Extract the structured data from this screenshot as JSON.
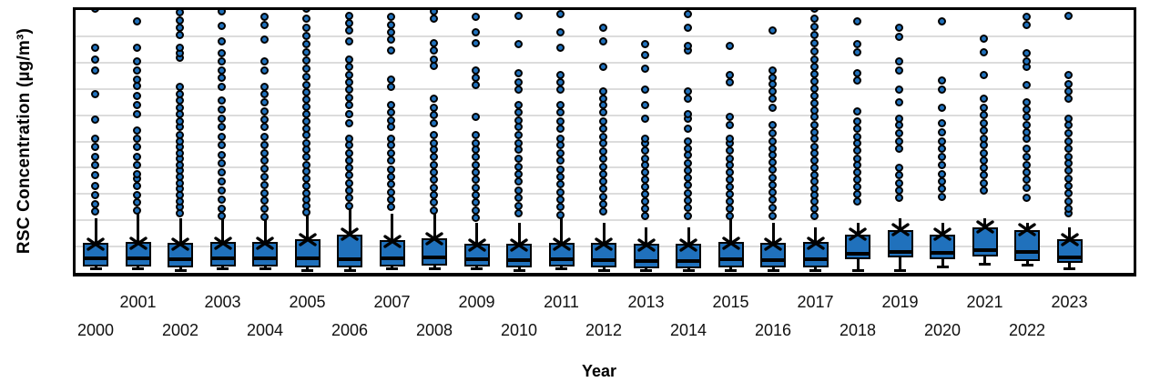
{
  "figure": {
    "y_axis_title": "RSC Concentration (µg/m³)",
    "x_axis_title": "Year",
    "colors": {
      "box_fill": "#2071BC",
      "stroke": "#000000",
      "gridline": "#DCDCDC",
      "background": "#FFFFFF",
      "tick_label": "#111111"
    }
  },
  "chart_data": {
    "type": "boxplot",
    "title": "",
    "xlabel": "Year",
    "ylabel": "RSC Concentration (µg/m³)",
    "grid": true,
    "legend": "none",
    "y_tick_labels_visible": false,
    "y_divisions": 10,
    "ylim": [
      0,
      10
    ],
    "units_note": "y values expressed in gridline divisions (0 = x-axis, 10 = top of plot); chart shows no numeric y-axis labels",
    "categories": [
      "2000",
      "2001",
      "2002",
      "2003",
      "2004",
      "2005",
      "2006",
      "2007",
      "2008",
      "2009",
      "2010",
      "2011",
      "2012",
      "2013",
      "2014",
      "2015",
      "2016",
      "2017",
      "2018",
      "2019",
      "2020",
      "2021",
      "2022",
      "2023"
    ],
    "series": [
      {
        "year": "2000",
        "q1": 0.24,
        "median": 0.55,
        "q3": 1.14,
        "mean": 1.1,
        "whisker_low": 0.14,
        "whisker_high": 2.07,
        "outliers": [
          2.31,
          2.59,
          2.93,
          3.28,
          3.69,
          4.07,
          4.41,
          4.76,
          5.1,
          5.83,
          6.79,
          7.69,
          8.1,
          8.55,
          10.05
        ]
      },
      {
        "year": "2001",
        "q1": 0.24,
        "median": 0.55,
        "q3": 1.17,
        "mean": 1.12,
        "whisker_low": 0.14,
        "whisker_high": 2.24,
        "outliers": [
          2.34,
          2.66,
          2.93,
          3.28,
          3.55,
          3.72,
          4.07,
          4.41,
          4.76,
          5.1,
          5.41,
          6.03,
          6.38,
          6.72,
          7.1,
          7.34,
          7.69,
          8.03,
          8.55,
          9.55
        ]
      },
      {
        "year": "2002",
        "q1": 0.21,
        "median": 0.52,
        "q3": 1.14,
        "mean": 1.1,
        "whisker_low": 0.1,
        "whisker_high": 2.07,
        "outliers": [
          2.24,
          2.48,
          2.69,
          2.93,
          3.17,
          3.38,
          3.62,
          3.86,
          4.07,
          4.31,
          4.55,
          4.76,
          5.0,
          5.24,
          5.52,
          5.76,
          6.03,
          6.28,
          6.55,
          6.79,
          7.07,
          8.17,
          8.34,
          8.55,
          9.03,
          9.31,
          9.59,
          9.9
        ]
      },
      {
        "year": "2003",
        "q1": 0.24,
        "median": 0.55,
        "q3": 1.17,
        "mean": 1.12,
        "whisker_low": 0.14,
        "whisker_high": 2.24,
        "outliers": [
          2.14,
          2.41,
          2.76,
          3.1,
          3.45,
          3.79,
          4.14,
          4.48,
          4.83,
          5.17,
          5.52,
          5.86,
          6.21,
          6.55,
          7.07,
          7.41,
          7.69,
          8.03,
          8.34,
          8.79,
          9.38,
          9.93
        ]
      },
      {
        "year": "2004",
        "q1": 0.24,
        "median": 0.55,
        "q3": 1.17,
        "mean": 1.12,
        "whisker_low": 0.14,
        "whisker_high": 2.07,
        "outliers": [
          2.1,
          2.41,
          2.72,
          3.0,
          3.31,
          3.62,
          3.93,
          4.24,
          4.55,
          4.86,
          5.17,
          5.52,
          5.83,
          6.14,
          6.48,
          6.79,
          7.07,
          7.69,
          8.03,
          8.86,
          9.41,
          9.72
        ]
      },
      {
        "year": "2005",
        "q1": 0.21,
        "median": 0.55,
        "q3": 1.28,
        "mean": 1.28,
        "whisker_low": 0.1,
        "whisker_high": 2.24,
        "outliers": [
          2.28,
          2.52,
          2.76,
          3.0,
          3.28,
          3.55,
          3.83,
          4.1,
          4.38,
          4.66,
          4.93,
          5.21,
          5.48,
          5.76,
          6.03,
          6.31,
          6.59,
          6.86,
          7.14,
          7.45,
          7.76,
          8.07,
          8.38,
          8.69,
          9.0,
          9.31,
          9.66,
          10.05
        ]
      },
      {
        "year": "2006",
        "q1": 0.21,
        "median": 0.52,
        "q3": 1.45,
        "mean": 1.47,
        "whisker_low": 0.07,
        "whisker_high": 2.41,
        "outliers": [
          2.52,
          2.83,
          3.1,
          3.38,
          3.69,
          3.97,
          4.24,
          4.55,
          4.83,
          5.1,
          5.69,
          6.03,
          6.38,
          6.66,
          6.97,
          7.24,
          7.52,
          7.83,
          8.1,
          8.79,
          9.21,
          9.48,
          9.76
        ]
      },
      {
        "year": "2007",
        "q1": 0.24,
        "median": 0.55,
        "q3": 1.24,
        "mean": 1.2,
        "whisker_low": 0.14,
        "whisker_high": 2.24,
        "outliers": [
          2.48,
          2.76,
          3.03,
          3.34,
          3.62,
          3.9,
          4.24,
          4.55,
          4.83,
          5.1,
          5.52,
          5.79,
          6.1,
          6.38,
          7.07,
          7.34,
          8.45,
          8.86,
          9.14,
          9.41,
          9.72
        ]
      },
      {
        "year": "2008",
        "q1": 0.28,
        "median": 0.59,
        "q3": 1.31,
        "mean": 1.3,
        "whisker_low": 0.17,
        "whisker_high": 2.41,
        "outliers": [
          2.34,
          2.66,
          2.93,
          3.21,
          3.52,
          3.79,
          4.07,
          4.38,
          4.66,
          4.93,
          5.24,
          5.69,
          5.97,
          6.28,
          6.62,
          7.86,
          8.1,
          8.45,
          8.72,
          9.66,
          9.93
        ]
      },
      {
        "year": "2009",
        "q1": 0.24,
        "median": 0.52,
        "q3": 1.1,
        "mean": 1.06,
        "whisker_low": 0.14,
        "whisker_high": 1.9,
        "outliers": [
          2.07,
          2.34,
          2.66,
          2.93,
          3.21,
          3.52,
          3.79,
          4.07,
          4.38,
          4.66,
          4.93,
          5.24,
          5.93,
          7.14,
          7.41,
          7.69,
          8.72,
          9.14,
          9.72
        ]
      },
      {
        "year": "2010",
        "q1": 0.21,
        "median": 0.48,
        "q3": 1.1,
        "mean": 1.06,
        "whisker_low": 0.1,
        "whisker_high": 1.9,
        "outliers": [
          2.24,
          2.52,
          2.83,
          3.1,
          3.45,
          3.72,
          4.03,
          4.31,
          4.66,
          4.93,
          5.24,
          5.52,
          5.79,
          6.1,
          6.38,
          6.97,
          7.24,
          7.59,
          8.69,
          9.76
        ]
      },
      {
        "year": "2011",
        "q1": 0.24,
        "median": 0.52,
        "q3": 1.14,
        "mean": 1.1,
        "whisker_low": 0.14,
        "whisker_high": 2.07,
        "outliers": [
          2.17,
          2.48,
          2.76,
          3.03,
          3.34,
          3.62,
          3.9,
          4.24,
          4.55,
          4.83,
          5.1,
          5.45,
          5.76,
          6.1,
          6.38,
          6.97,
          7.24,
          7.52,
          8.55,
          9.14,
          9.83
        ]
      },
      {
        "year": "2012",
        "q1": 0.21,
        "median": 0.48,
        "q3": 1.14,
        "mean": 1.1,
        "whisker_low": 0.1,
        "whisker_high": 1.9,
        "outliers": [
          2.31,
          2.59,
          2.86,
          3.17,
          3.45,
          3.72,
          4.03,
          4.31,
          4.59,
          4.9,
          5.17,
          5.45,
          5.76,
          6.1,
          6.38,
          6.62,
          6.9,
          7.83,
          8.79,
          9.31
        ]
      },
      {
        "year": "2013",
        "q1": 0.17,
        "median": 0.45,
        "q3": 1.1,
        "mean": 1.06,
        "whisker_low": 0.07,
        "whisker_high": 1.72,
        "outliers": [
          2.14,
          2.41,
          2.69,
          2.97,
          3.24,
          3.52,
          3.79,
          4.07,
          4.34,
          4.62,
          4.9,
          5.1,
          5.86,
          6.38,
          6.97,
          7.76,
          8.28,
          8.69
        ]
      },
      {
        "year": "2014",
        "q1": 0.17,
        "median": 0.45,
        "q3": 1.1,
        "mean": 1.06,
        "whisker_low": 0.07,
        "whisker_high": 1.72,
        "outliers": [
          2.14,
          2.45,
          2.72,
          3.0,
          3.31,
          3.59,
          3.86,
          4.14,
          4.45,
          4.72,
          5.0,
          5.45,
          5.86,
          6.03,
          6.62,
          6.9,
          8.45,
          8.62,
          9.31,
          9.83
        ]
      },
      {
        "year": "2015",
        "q1": 0.21,
        "median": 0.52,
        "q3": 1.17,
        "mean": 1.13,
        "whisker_low": 0.1,
        "whisker_high": 2.07,
        "outliers": [
          2.14,
          2.41,
          2.69,
          2.97,
          3.24,
          3.52,
          3.79,
          4.07,
          4.34,
          4.62,
          4.9,
          5.1,
          5.62,
          5.93,
          7.24,
          7.52,
          8.62
        ]
      },
      {
        "year": "2016",
        "q1": 0.21,
        "median": 0.48,
        "q3": 1.14,
        "mean": 1.1,
        "whisker_low": 0.1,
        "whisker_high": 1.9,
        "outliers": [
          2.14,
          2.45,
          2.76,
          3.03,
          3.31,
          3.59,
          3.9,
          4.17,
          4.45,
          4.72,
          5.0,
          5.28,
          5.59,
          6.28,
          6.62,
          6.9,
          7.17,
          7.41,
          7.69,
          9.21
        ]
      },
      {
        "year": "2017",
        "q1": 0.21,
        "median": 0.52,
        "q3": 1.17,
        "mean": 1.13,
        "whisker_low": 0.1,
        "whisker_high": 1.72,
        "outliers": [
          2.14,
          2.41,
          2.69,
          2.93,
          3.17,
          3.45,
          3.69,
          3.97,
          4.24,
          4.52,
          4.79,
          5.07,
          5.34,
          5.62,
          5.9,
          6.17,
          6.45,
          6.72,
          7.0,
          7.28,
          7.55,
          7.83,
          8.1,
          8.41,
          8.72,
          9.03,
          9.34,
          9.66,
          10.05
        ]
      },
      {
        "year": "2018",
        "q1": 0.52,
        "median": 0.72,
        "q3": 1.45,
        "mean": 1.48,
        "whisker_low": 0.1,
        "whisker_high": 1.9,
        "outliers": [
          2.69,
          2.97,
          3.24,
          3.52,
          3.79,
          4.07,
          4.34,
          4.62,
          4.9,
          5.17,
          5.45,
          5.76,
          6.14,
          7.31,
          7.59,
          8.38,
          8.69,
          9.55
        ]
      },
      {
        "year": "2019",
        "q1": 0.59,
        "median": 0.79,
        "q3": 1.62,
        "mean": 1.66,
        "whisker_low": 0.1,
        "whisker_high": 2.07,
        "outliers": [
          2.83,
          3.1,
          3.38,
          3.69,
          3.97,
          4.72,
          5.0,
          5.28,
          5.59,
          5.86,
          6.48,
          6.97,
          7.69,
          8.03,
          8.97,
          9.31
        ]
      },
      {
        "year": "2020",
        "q1": 0.52,
        "median": 0.76,
        "q3": 1.45,
        "mean": 1.48,
        "whisker_low": 0.24,
        "whisker_high": 1.9,
        "outliers": [
          2.86,
          3.17,
          3.45,
          3.72,
          4.07,
          4.38,
          4.72,
          5.0,
          5.34,
          5.69,
          6.28,
          6.97,
          7.31,
          9.55
        ]
      },
      {
        "year": "2021",
        "q1": 0.62,
        "median": 0.86,
        "q3": 1.72,
        "mean": 1.76,
        "whisker_low": 0.34,
        "whisker_high": 2.07,
        "outliers": [
          3.1,
          3.38,
          3.69,
          3.97,
          4.24,
          4.55,
          4.83,
          5.1,
          5.41,
          5.69,
          5.97,
          6.28,
          6.62,
          7.52,
          8.38,
          8.9
        ]
      },
      {
        "year": "2022",
        "q1": 0.45,
        "median": 0.79,
        "q3": 1.62,
        "mean": 1.66,
        "whisker_low": 0.28,
        "whisker_high": 1.9,
        "outliers": [
          2.83,
          3.21,
          3.52,
          3.79,
          4.07,
          4.41,
          4.72,
          5.07,
          5.34,
          5.62,
          5.93,
          6.21,
          6.48,
          7.14,
          7.83,
          8.03,
          8.34,
          9.41,
          9.72
        ]
      },
      {
        "year": "2023",
        "q1": 0.38,
        "median": 0.59,
        "q3": 1.28,
        "mean": 1.25,
        "whisker_low": 0.17,
        "whisker_high": 1.72,
        "outliers": [
          2.24,
          2.41,
          2.69,
          3.0,
          3.28,
          3.55,
          3.86,
          4.14,
          4.41,
          4.72,
          5.0,
          5.28,
          5.59,
          5.86,
          6.62,
          6.9,
          7.17,
          7.52,
          9.76
        ]
      }
    ]
  }
}
